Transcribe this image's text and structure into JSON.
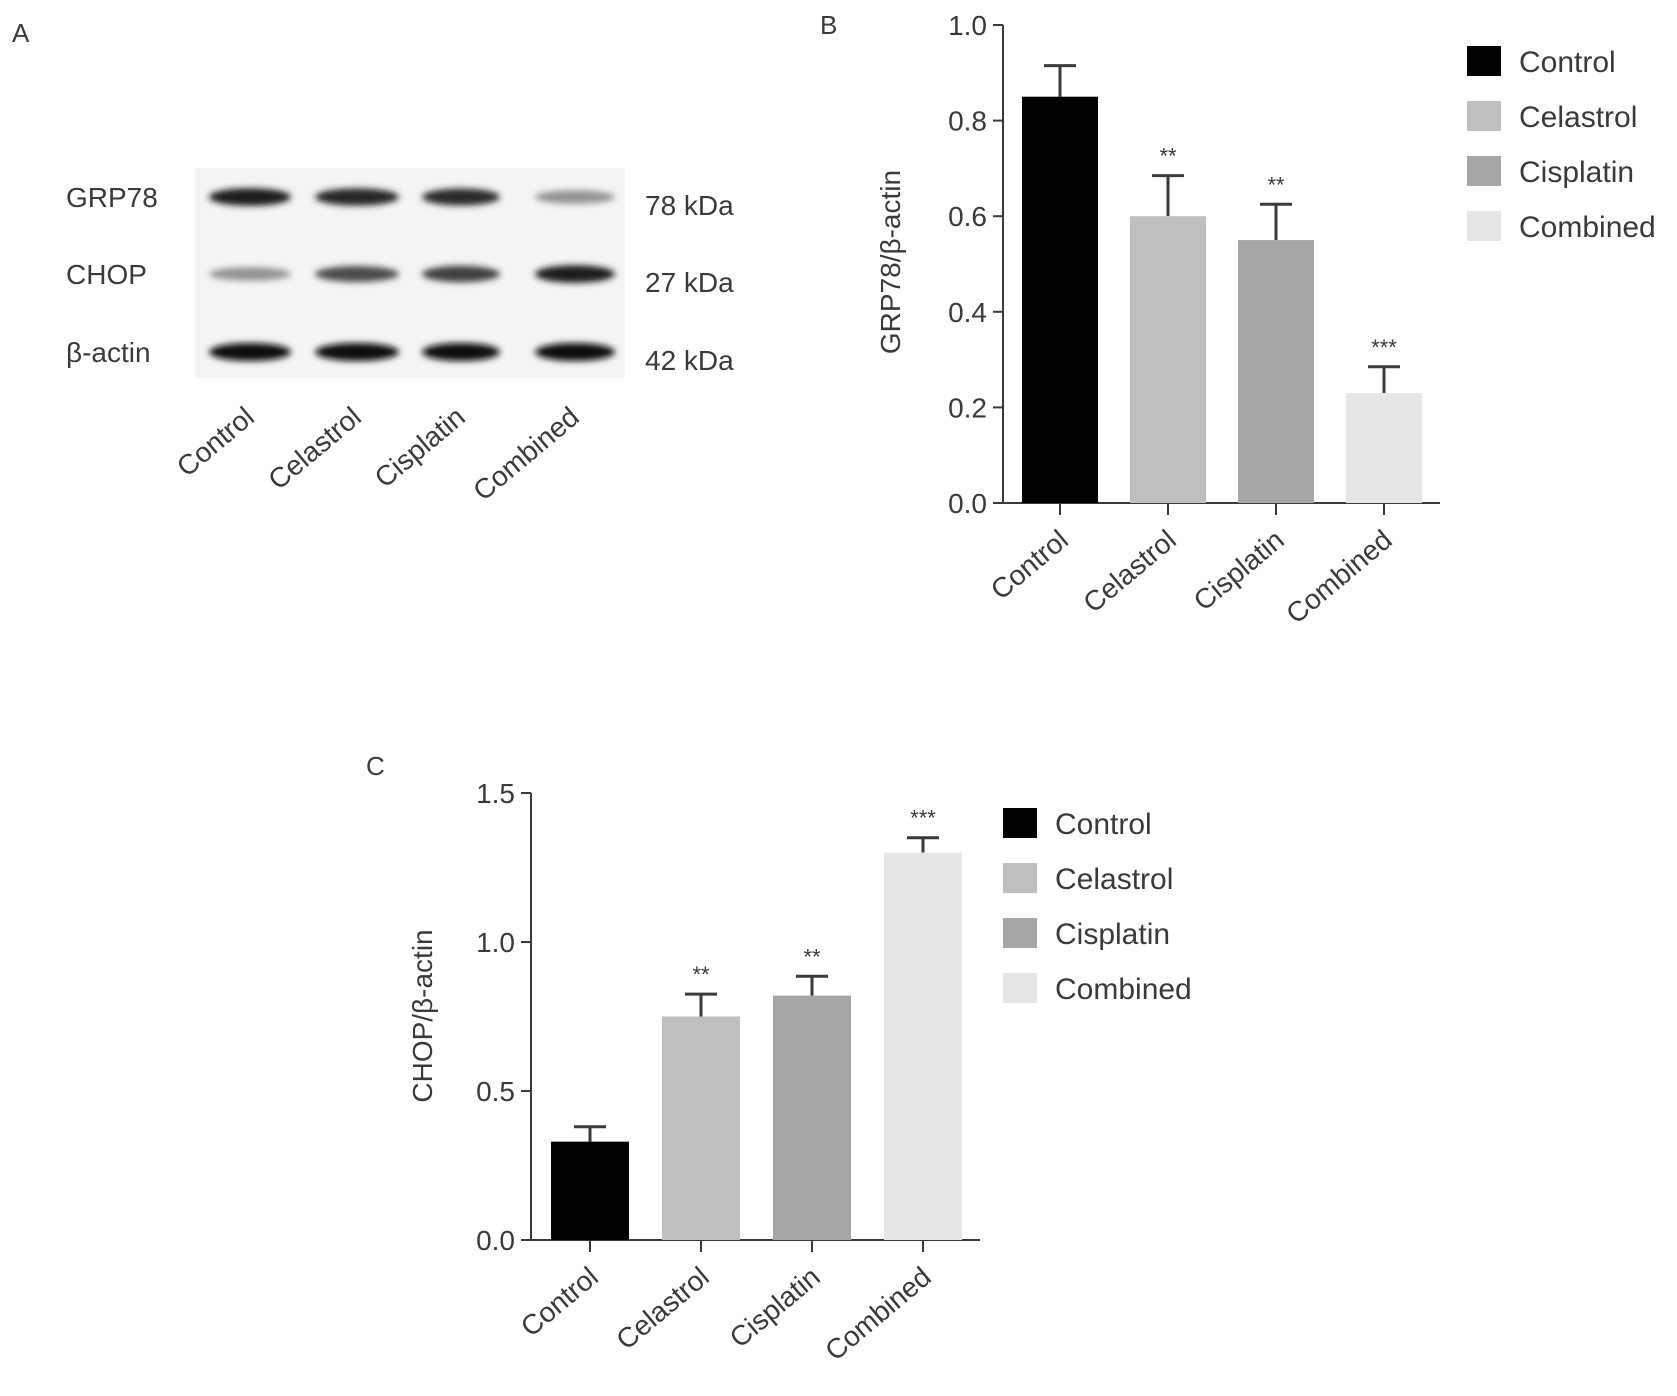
{
  "panels": {
    "a": {
      "label": "A"
    },
    "b": {
      "label": "B"
    },
    "c": {
      "label": "C"
    }
  },
  "blot": {
    "rows": [
      {
        "protein": "GRP78",
        "size": "78 kDa",
        "band_intensity": [
          0.95,
          0.9,
          0.88,
          0.45
        ]
      },
      {
        "protein": "CHOP",
        "size": "27 kDa",
        "band_intensity": [
          0.45,
          0.75,
          0.8,
          0.95
        ]
      },
      {
        "protein": "β-actin",
        "size": "42 kDa",
        "band_intensity": [
          1.0,
          1.0,
          1.0,
          1.0
        ]
      }
    ],
    "lanes": [
      "Control",
      "Celastrol",
      "Cisplatin",
      "Combined"
    ]
  },
  "chart_data": [
    {
      "type": "bar",
      "panel": "B",
      "categories": [
        "Control",
        "Celastrol",
        "Cisplatin",
        "Combined"
      ],
      "values": [
        0.85,
        0.6,
        0.55,
        0.23
      ],
      "errors": [
        0.065,
        0.085,
        0.075,
        0.055
      ],
      "significance": [
        "",
        "**",
        "**",
        "***"
      ],
      "ylabel": "GRP78/β-actin",
      "ylim": [
        0,
        1.0
      ],
      "yticks": [
        "0.0",
        "0.2",
        "0.4",
        "0.6",
        "0.8",
        "1.0"
      ],
      "legend": [
        "Control",
        "Celastrol",
        "Cisplatin",
        "Combined"
      ],
      "legend_position": "right",
      "colors": [
        "#000000",
        "#bfbfbf",
        "#a6a6a6",
        "#e6e6e6"
      ]
    },
    {
      "type": "bar",
      "panel": "C",
      "categories": [
        "Control",
        "Celastrol",
        "Cisplatin",
        "Combined"
      ],
      "values": [
        0.33,
        0.75,
        0.82,
        1.3
      ],
      "errors": [
        0.05,
        0.075,
        0.065,
        0.05
      ],
      "significance": [
        "",
        "**",
        "**",
        "***"
      ],
      "ylabel": "CHOP/β-actin",
      "ylim": [
        0,
        1.5
      ],
      "yticks": [
        "0.0",
        "0.5",
        "1.0",
        "1.5"
      ],
      "legend": [
        "Control",
        "Celastrol",
        "Cisplatin",
        "Combined"
      ],
      "legend_position": "right",
      "colors": [
        "#000000",
        "#bfbfbf",
        "#a6a6a6",
        "#e6e6e6"
      ]
    }
  ]
}
